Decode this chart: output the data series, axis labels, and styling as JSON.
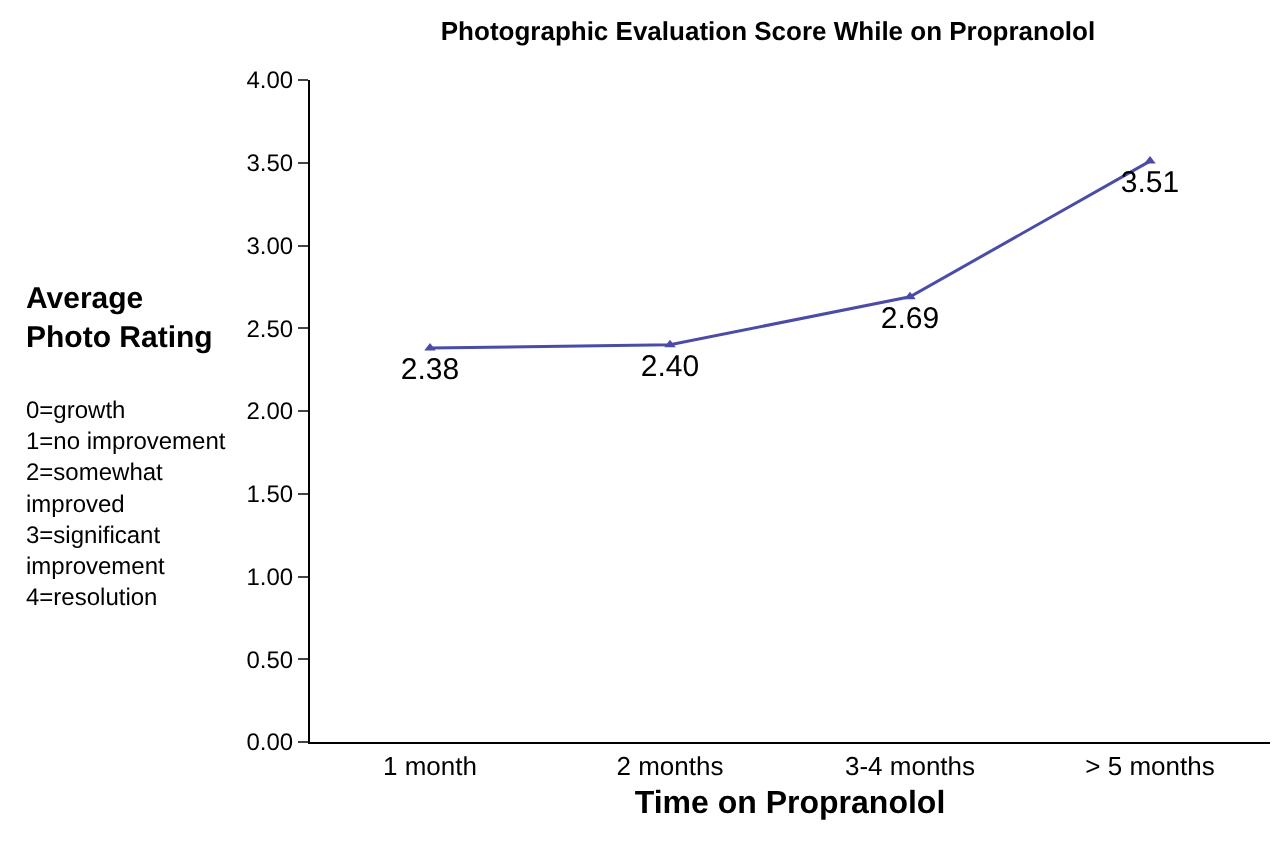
{
  "chart_data": {
    "type": "line",
    "title": "Photographic Evaluation Score While on Propranolol",
    "xlabel": "Time on Propranolol",
    "ylabel": "Average\nPhoto Rating",
    "annotations": [
      "0=growth\n1=no improvement\n2=somewhat\nimproved\n3=significant\nimprovement\n4=resolution"
    ],
    "categories": [
      "1 month",
      "2 months",
      "3-4 months",
      "> 5 months"
    ],
    "series": [
      {
        "color": "#4b4ba8",
        "values": [
          2.38,
          2.4,
          2.69,
          3.51
        ],
        "value_labels": [
          "2.38",
          "2.40",
          "2.69",
          "3.51"
        ]
      }
    ],
    "ylim": [
      0,
      4
    ],
    "yticks": [
      {
        "value": 0,
        "label": "0.00"
      },
      {
        "value": 0.5,
        "label": "0.50"
      },
      {
        "value": 1,
        "label": "1.00"
      },
      {
        "value": 1.5,
        "label": "1.50"
      },
      {
        "value": 2,
        "label": "2.00"
      },
      {
        "value": 2.5,
        "label": "2.50"
      },
      {
        "value": 3,
        "label": "3.00"
      },
      {
        "value": 3.5,
        "label": "3.50"
      },
      {
        "value": 4,
        "label": "4.00"
      }
    ],
    "legend": false,
    "marker": "triangle",
    "line_style": "solid"
  }
}
